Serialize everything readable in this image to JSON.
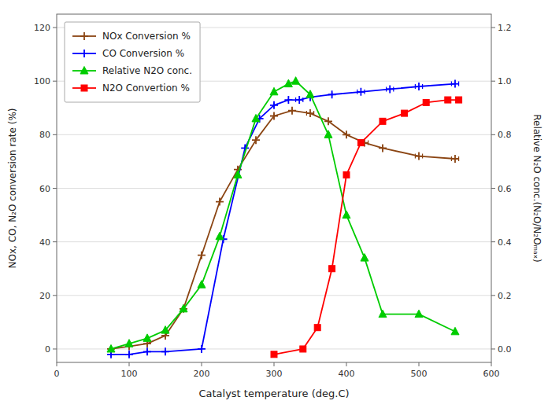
{
  "chart_data": {
    "type": "line",
    "xlabel": "Catalyst temperature  (deg.C)",
    "ylabel": "NOx, CO, N₂O conversion rate (%)",
    "y2label": "Relative N₂O conc.(N₂O/N₂Oₘₐₓ)",
    "xlim": [
      0,
      600
    ],
    "ylim": [
      -5,
      125
    ],
    "y2lim": [
      -0.05,
      1.25
    ],
    "xticks": [
      0,
      100,
      200,
      300,
      400,
      500,
      600
    ],
    "yticks": [
      0,
      20,
      40,
      60,
      80,
      100,
      120
    ],
    "y2ticks": [
      {
        "value": 0.0,
        "label": "0.0"
      },
      0.2,
      0.4,
      0.6,
      0.8,
      {
        "value": 1.0,
        "label": "1.0"
      },
      1.2
    ],
    "grid": "y",
    "legend": "upper left",
    "series": [
      {
        "name": "NOx Conversion %",
        "color": "#8B4513",
        "marker": "plus",
        "x": [
          75,
          100,
          125,
          150,
          175,
          200,
          225,
          250,
          275,
          300,
          325,
          350,
          375,
          400,
          425,
          450,
          500,
          550
        ],
        "values": [
          0,
          1,
          2,
          5,
          15,
          35,
          55,
          67,
          78,
          87,
          89,
          88,
          85,
          80,
          77,
          75,
          72,
          71
        ],
        "xerr": [
          0,
          0,
          0,
          0,
          0,
          0,
          0,
          0,
          0,
          0,
          0,
          5,
          0,
          0,
          5,
          0,
          5,
          5
        ]
      },
      {
        "name": "CO Conversion %",
        "color": "#0000FF",
        "marker": "plus",
        "x": [
          75,
          100,
          125,
          150,
          200,
          230,
          260,
          280,
          300,
          320,
          335,
          350,
          380,
          420,
          460,
          500,
          550
        ],
        "values": [
          -2,
          -2,
          -1,
          -1,
          0,
          41,
          75,
          86,
          91,
          93,
          93,
          94,
          95,
          96,
          97,
          98,
          99
        ],
        "xerr": [
          0,
          0,
          0,
          0,
          0,
          0,
          0,
          0,
          0,
          0,
          5,
          0,
          0,
          5,
          5,
          5,
          5
        ]
      },
      {
        "name": "Relative N2O conc.",
        "color": "#00CC00",
        "marker": "triangle",
        "axis": "y2",
        "x": [
          75,
          100,
          125,
          150,
          175,
          200,
          225,
          250,
          275,
          300,
          320,
          330,
          350,
          375,
          400,
          425,
          450,
          500,
          550
        ],
        "values": [
          0.0,
          0.02,
          0.04,
          0.07,
          0.15,
          0.24,
          0.42,
          0.65,
          0.86,
          0.96,
          0.99,
          1.0,
          0.95,
          0.8,
          0.5,
          0.34,
          0.13,
          0.13,
          0.065
        ]
      },
      {
        "name": "N2O Convertion %",
        "color": "#FF0000",
        "marker": "square",
        "x": [
          300,
          340,
          360,
          380,
          400,
          420,
          450,
          480,
          510,
          540,
          555
        ],
        "values": [
          -2,
          0,
          8,
          30,
          65,
          77,
          85,
          88,
          92,
          93,
          93
        ]
      }
    ]
  }
}
